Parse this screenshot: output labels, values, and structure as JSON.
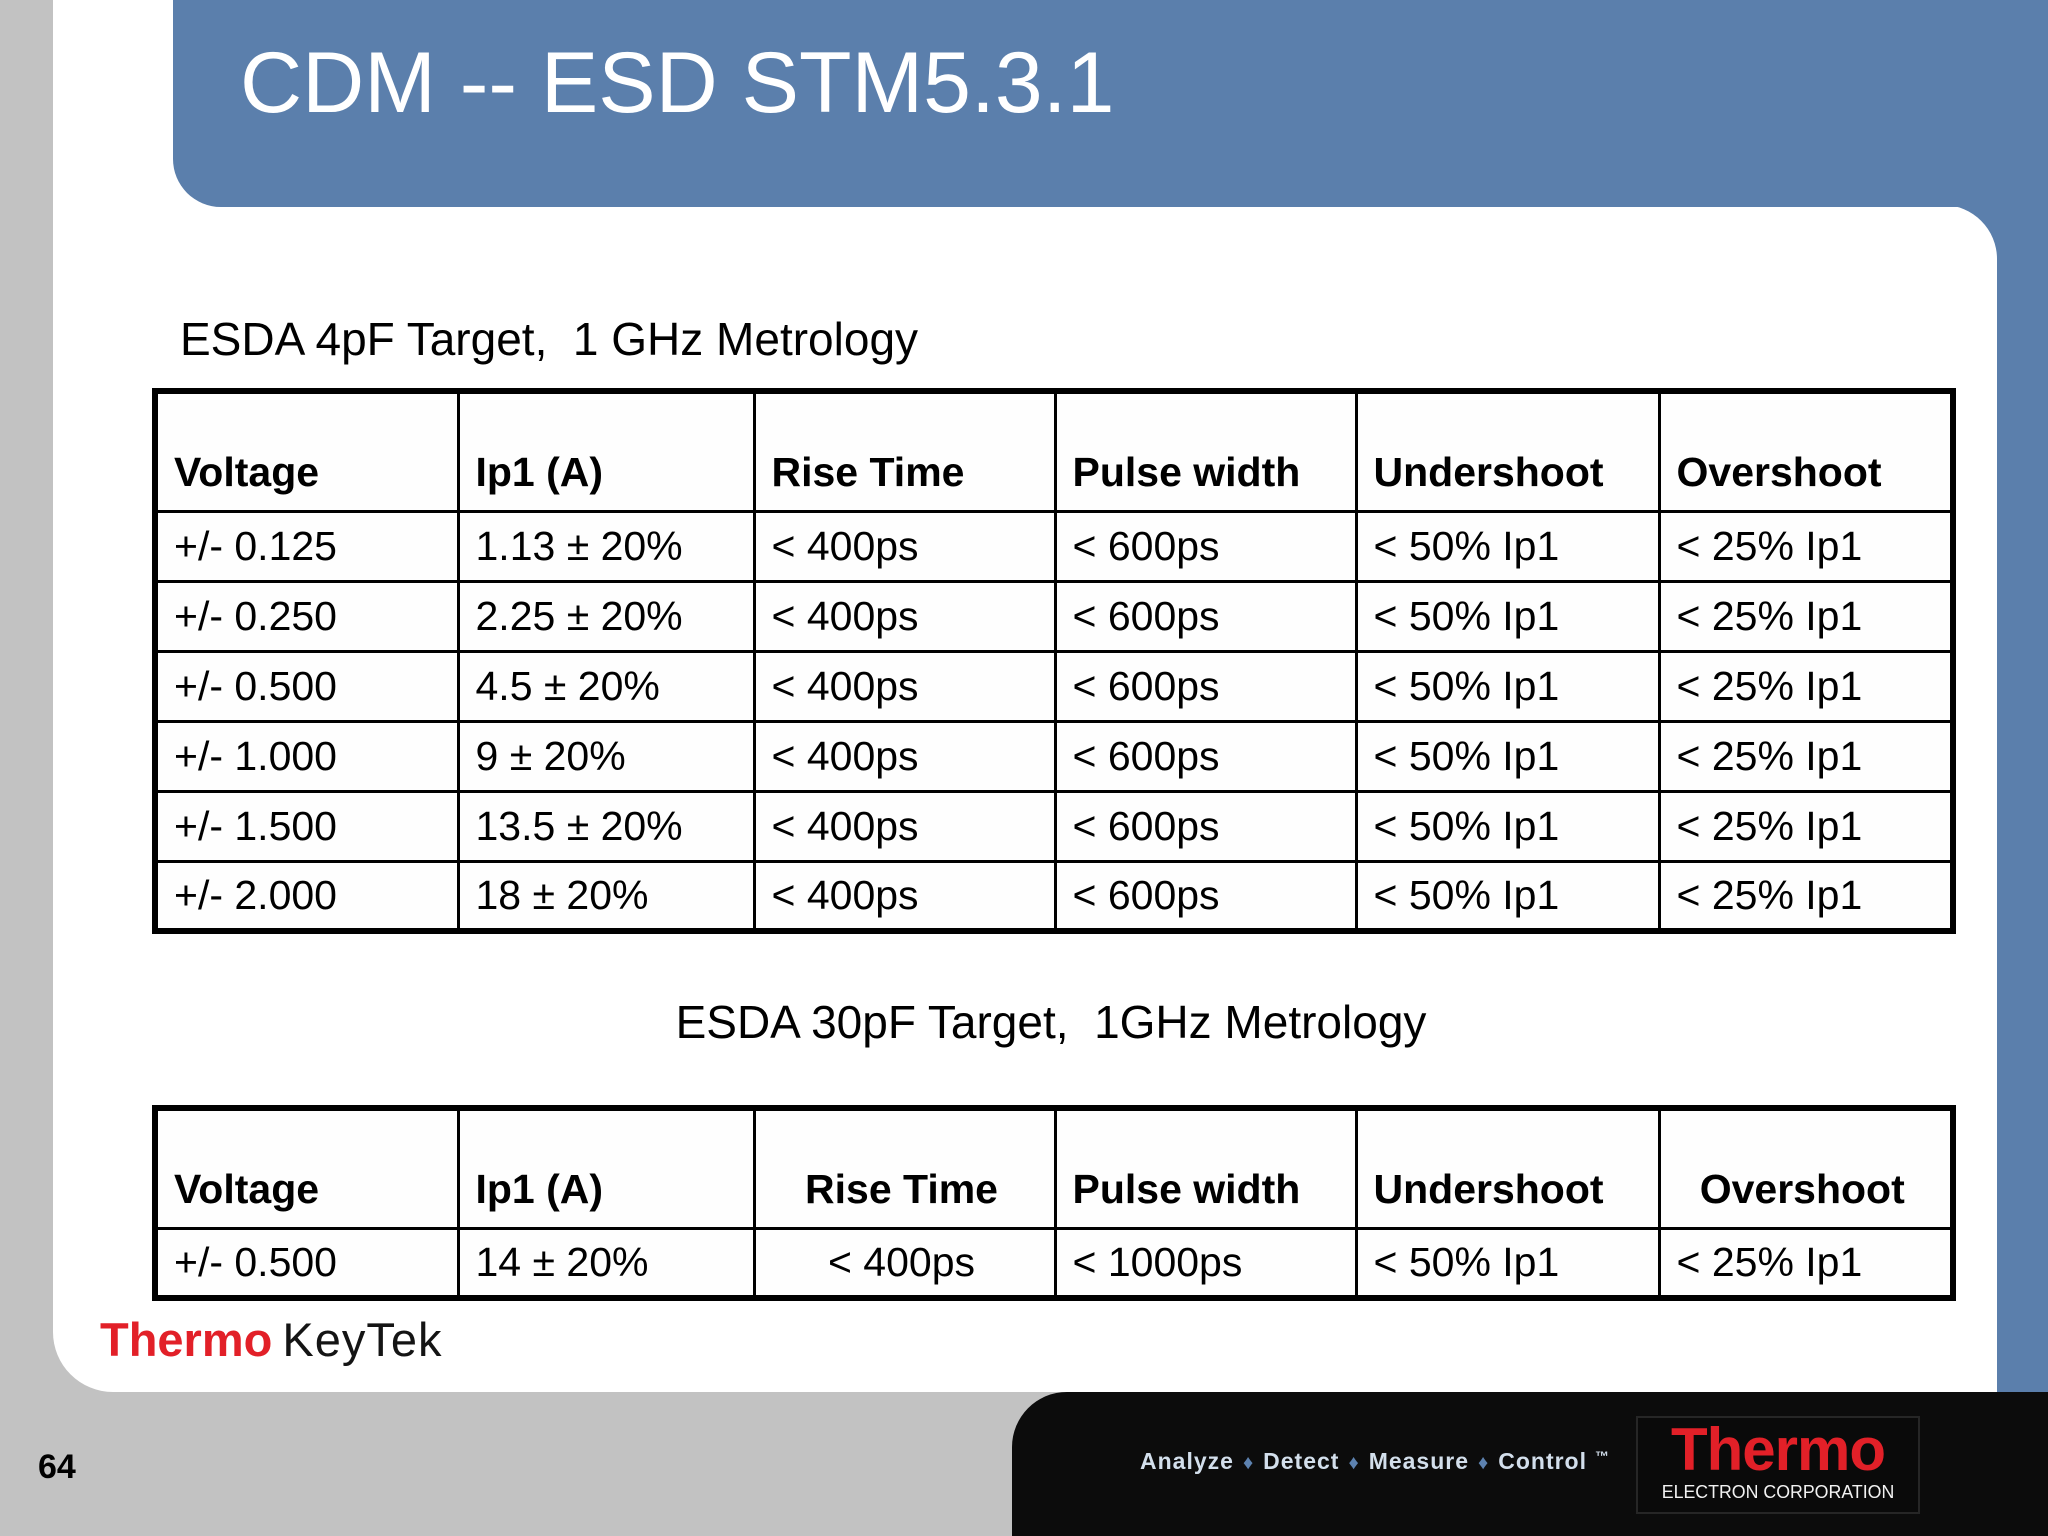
{
  "slide": {
    "title": "CDM -- ESD STM5.3.1",
    "page_number": "64"
  },
  "section1": {
    "caption": "ESDA 4pF Target,  1 GHz Metrology",
    "table": {
      "headers": [
        "Voltage",
        "Ip1 (A)",
        "Rise Time",
        "Pulse width",
        "Undershoot",
        "Overshoot"
      ],
      "rows": [
        [
          "+/- 0.125",
          "1.13 ± 20%",
          "< 400ps",
          "< 600ps",
          "< 50% Ip1",
          "< 25% Ip1"
        ],
        [
          "+/- 0.250",
          "2.25 ± 20%",
          "< 400ps",
          "< 600ps",
          "< 50% Ip1",
          "< 25% Ip1"
        ],
        [
          "+/- 0.500",
          "4.5 ± 20%",
          "< 400ps",
          "< 600ps",
          "< 50% Ip1",
          "< 25% Ip1"
        ],
        [
          "+/- 1.000",
          "9 ± 20%",
          "< 400ps",
          "< 600ps",
          "< 50% Ip1",
          "< 25% Ip1"
        ],
        [
          "+/- 1.500",
          "13.5 ± 20%",
          "< 400ps",
          "< 600ps",
          "< 50% Ip1",
          "< 25% Ip1"
        ],
        [
          "+/- 2.000",
          "18 ± 20%",
          "< 400ps",
          "< 600ps",
          "< 50% Ip1",
          "< 25% Ip1"
        ]
      ]
    }
  },
  "section2": {
    "caption": "ESDA 30pF Target,  1GHz Metrology",
    "table": {
      "headers": [
        "Voltage",
        "Ip1 (A)",
        "Rise Time",
        "Pulse width",
        "Undershoot",
        "Overshoot"
      ],
      "rows": [
        [
          "+/- 0.500",
          "14 ± 20%",
          "< 400ps",
          "< 1000ps",
          "< 50% Ip1",
          "< 25% Ip1"
        ]
      ]
    }
  },
  "branding": {
    "keytek_thermo": "Thermo",
    "keytek_keytek": "KeyTek"
  },
  "footer": {
    "tagline_words": [
      "Analyze",
      "Detect",
      "Measure",
      "Control"
    ],
    "tagline_separator": "♦",
    "trademark": "™",
    "logo_name": "Thermo",
    "logo_subtitle": "ELECTRON CORPORATION"
  },
  "colors": {
    "banner-blue": "#5b7fac",
    "background-gray": "#c2c2c2",
    "footer-black": "#0c0c0c",
    "brand-red": "#e22028",
    "tagline-text": "#d3dfec",
    "tagline-diamond": "#5d82b0"
  }
}
